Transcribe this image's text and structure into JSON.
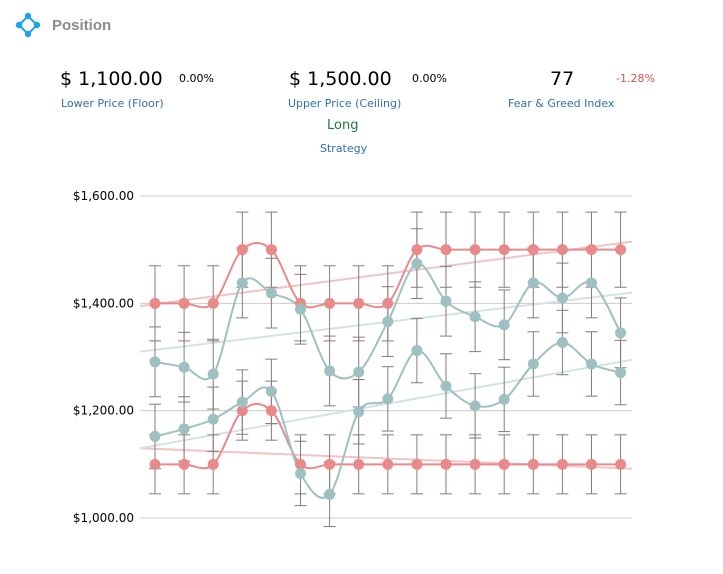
{
  "header": {
    "title": "Position",
    "icon": "diamond-nodes-icon",
    "icon_color": "#1da1f2"
  },
  "stats": {
    "lower": {
      "value": "$ 1,100.00",
      "change": "0.00%",
      "label": "Lower Price (Floor)"
    },
    "upper": {
      "value": "$ 1,500.00",
      "change": "0.00%",
      "label": "Upper Price (Ceiling)"
    },
    "fear_greed": {
      "value": "77",
      "change": "-1.28%",
      "label": "Fear & Greed Index",
      "change_color": "#d9534f"
    },
    "strategy": {
      "value": "Long",
      "label": "Strategy"
    }
  },
  "chart_data": {
    "type": "line",
    "y_ticks": [
      "$1,600.00",
      "$1,400.00",
      "$1,200.00",
      "$1,000.00"
    ],
    "ylim": [
      1000,
      1600
    ],
    "x": [
      1,
      2,
      3,
      4,
      5,
      6,
      7,
      8,
      9,
      10,
      11,
      12,
      13,
      14,
      15,
      16,
      17
    ],
    "grid": "horizontal",
    "colors": {
      "red": "#e8898a",
      "teal": "#9fc0c1",
      "error_bar": "#8a7a7a",
      "trend_red": "#f2c4c4",
      "trend_teal": "#d3e3e3",
      "grid": "#cccccc"
    },
    "series": [
      {
        "color": "red",
        "values": [
          1400,
          1400,
          1400,
          1500,
          1500,
          1400,
          1400,
          1400,
          1400,
          1500,
          1500,
          1500,
          1500,
          1500,
          1500,
          1500,
          1500
        ],
        "err": 70
      },
      {
        "color": "red",
        "values": [
          1100,
          1100,
          1100,
          1200,
          1200,
          1100,
          1100,
          1100,
          1100,
          1100,
          1100,
          1100,
          1100,
          1100,
          1100,
          1100,
          1100
        ],
        "err": 55
      },
      {
        "color": "teal",
        "values": [
          1291,
          1281,
          1268,
          1438,
          1419,
          1389,
          1274,
          1272,
          1366,
          1474,
          1404,
          1375,
          1360,
          1438,
          1410,
          1438,
          1345
        ],
        "err": 65
      },
      {
        "color": "teal",
        "values": [
          1152,
          1166,
          1184,
          1216,
          1236,
          1083,
          1044,
          1198,
          1222,
          1312,
          1246,
          1209,
          1221,
          1287,
          1327,
          1287,
          1271
        ],
        "err": 60
      }
    ],
    "trendlines": [
      {
        "color": "trend_red",
        "from": 1395,
        "to": 1515
      },
      {
        "color": "trend_red",
        "from": 1130,
        "to": 1092
      },
      {
        "color": "trend_teal",
        "from": 1310,
        "to": 1420
      },
      {
        "color": "trend_teal",
        "from": 1130,
        "to": 1295
      }
    ]
  }
}
